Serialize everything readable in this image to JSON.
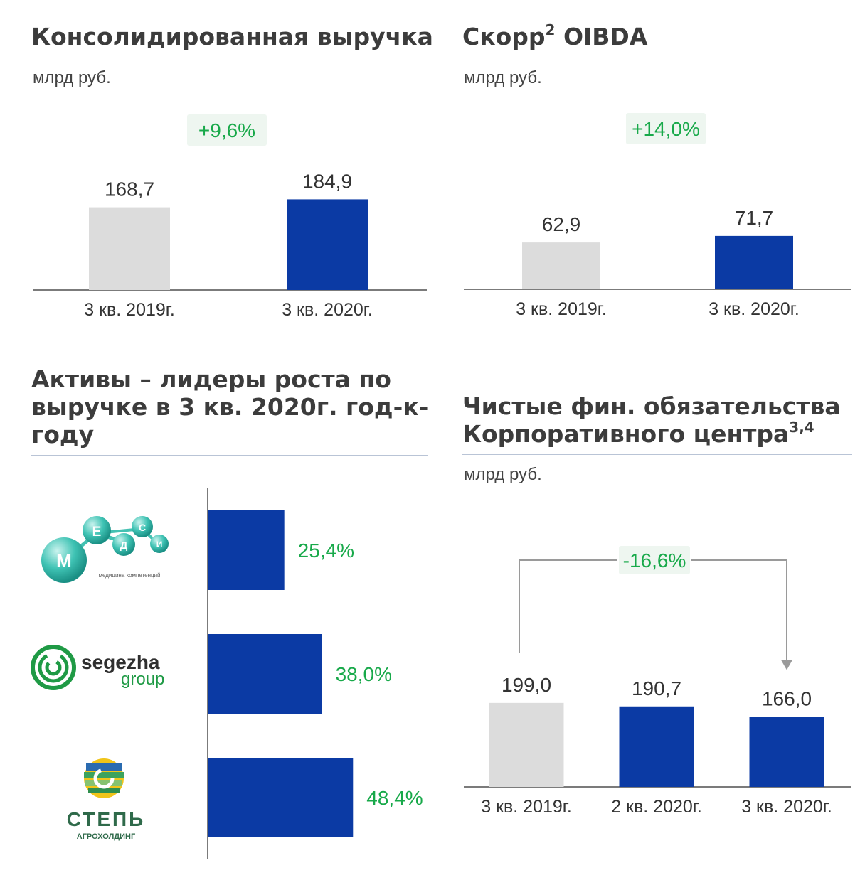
{
  "colors": {
    "prev": "#dcdcdc",
    "cur": "#0b3aa4",
    "growth": "#18a94a",
    "badge_bg": "#eef6f0",
    "axis": "#7b7b7b"
  },
  "revenue": {
    "title": "Консолидированная выручка",
    "unit": "млрд руб."
  },
  "oibda": {
    "title_main": "Скорр",
    "title_sup": "2",
    "title_tail": " OIBDA",
    "unit": "млрд руб."
  },
  "assets": {
    "title_lines": [
      "Активы – лидеры роста по",
      "выручке в 3 кв. 2020г. год-к-",
      "году"
    ]
  },
  "debt": {
    "title_line1": "Чистые фин. обязательства",
    "title_line2": "Корпоративного центра",
    "title_sup": "3,4",
    "unit": "млрд руб."
  },
  "logos": {
    "medsi": {
      "letters": [
        "М",
        "Е",
        "Д",
        "С",
        "И"
      ],
      "tagline": "медицина компетенций",
      "icon": "medsi-molecule-logo"
    },
    "segezha": {
      "word1": "segezha",
      "word2": "group",
      "icon": "segezha-spiral-logo"
    },
    "step": {
      "word1": "СТЕПЬ",
      "word2": "АГРОХОЛДИНГ",
      "icon": "step-emblem-logo"
    }
  },
  "chart_data": [
    {
      "type": "bar",
      "title": "Консолидированная выручка",
      "ylabel": "млрд руб.",
      "categories": [
        "3 кв. 2019г.",
        "3 кв. 2020г."
      ],
      "values": [
        168.7,
        184.9
      ],
      "value_labels": [
        "168,7",
        "184,9"
      ],
      "change_label": "+9,6%",
      "ylim": [
        0,
        200
      ]
    },
    {
      "type": "bar",
      "title": "Скорр2 OIBDA",
      "ylabel": "млрд руб.",
      "categories": [
        "3 кв. 2019г.",
        "3 кв. 2020г."
      ],
      "values": [
        62.9,
        71.7
      ],
      "value_labels": [
        "62,9",
        "71,7"
      ],
      "change_label": "+14,0%",
      "ylim": [
        0,
        105
      ]
    },
    {
      "type": "bar",
      "orientation": "horizontal",
      "title": "Активы – лидеры роста по выручке в 3 кв. 2020г. год-к-году",
      "categories": [
        "medsi",
        "segezha group",
        "СТЕПЬ агрохолдинг"
      ],
      "values": [
        25.4,
        38.0,
        48.4
      ],
      "value_labels": [
        "25,4%",
        "38,0%",
        "48,4%"
      ],
      "xlim": [
        0,
        100
      ]
    },
    {
      "type": "bar",
      "title": "Чистые фин. обязательства Корпоративного центра3,4",
      "ylabel": "млрд руб.",
      "categories": [
        "3 кв. 2019г.",
        "2 кв. 2020г.",
        "3 кв. 2020г."
      ],
      "values": [
        199.0,
        190.7,
        166.0
      ],
      "value_labels": [
        "199,0",
        "190,7",
        "166,0"
      ],
      "change_label": "-16,6%",
      "ylim": [
        0,
        320
      ]
    }
  ]
}
